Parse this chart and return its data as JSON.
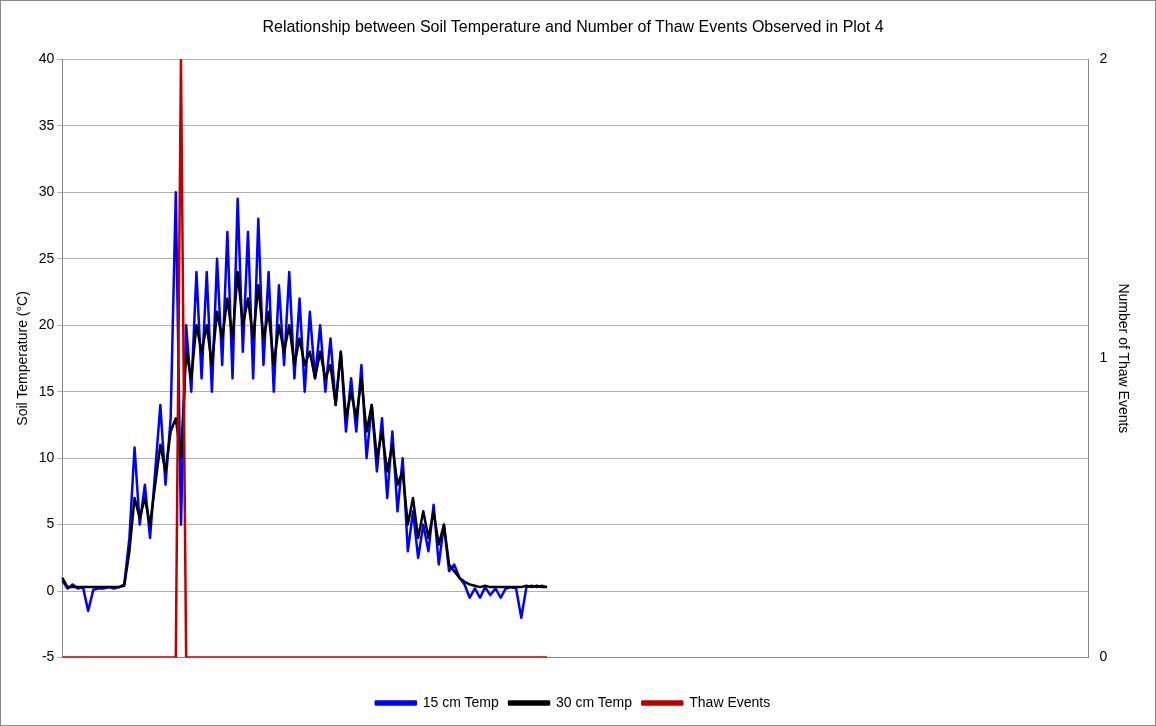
{
  "chart_data": {
    "type": "line",
    "title": "Relationship between Soil Temperature and Number of Thaw Events Observed in Plot 4",
    "ylabel": "Soil Temperature (°C)",
    "y2label": "Number of Thaw Events",
    "categories": [
      null,
      null,
      null,
      null,
      null,
      null,
      null,
      null,
      null,
      null,
      null,
      null,
      null,
      null,
      null,
      null,
      null,
      null,
      null,
      null,
      null,
      null,
      null,
      null,
      null,
      null,
      null,
      null,
      null,
      null,
      null,
      null,
      null,
      null,
      null,
      null,
      null,
      null,
      null,
      null,
      null,
      null,
      null,
      null,
      null,
      null,
      null,
      null,
      null,
      null,
      null,
      null,
      null,
      null,
      null,
      null,
      null,
      null,
      null,
      null,
      null,
      null,
      null,
      null,
      null,
      null,
      null,
      null,
      null,
      null,
      null,
      null,
      null,
      null,
      null,
      null,
      null,
      null,
      null,
      null,
      null,
      null,
      null,
      null,
      null,
      null,
      null,
      null,
      null,
      null,
      null,
      null,
      null,
      null,
      null,
      null,
      null,
      null,
      null,
      null,
      null,
      null,
      null,
      null,
      null,
      null,
      null,
      null,
      null,
      null,
      null,
      null,
      null,
      null,
      null,
      null,
      null,
      null,
      null,
      null,
      null,
      null,
      null,
      null,
      null,
      null,
      null,
      null,
      null,
      null,
      null,
      null,
      null,
      null,
      null,
      null,
      null,
      null,
      null,
      null,
      null,
      null,
      null,
      null,
      null,
      null,
      null,
      null,
      null,
      null,
      null,
      null,
      null,
      null,
      null,
      null,
      null,
      null,
      null,
      null,
      null,
      null,
      null,
      null,
      null,
      null,
      null,
      null,
      null,
      null,
      null,
      null,
      null,
      null,
      null,
      null,
      null,
      null,
      null,
      null,
      null,
      null,
      null,
      null,
      null,
      null,
      null,
      null,
      null,
      null,
      null,
      null,
      null,
      null,
      null,
      null,
      null,
      null,
      null,
      null
    ],
    "series": [
      {
        "name": "15 cm Temp",
        "color": "#0000ff",
        "values": [
          0.8,
          0.2,
          0.5,
          0.2,
          0.3,
          -1.5,
          0.1,
          0.2,
          0.2,
          0.3,
          0.2,
          0.3,
          0.5,
          4,
          10.8,
          5,
          8,
          4,
          9,
          14,
          8,
          13,
          30,
          5,
          20,
          15,
          24,
          16,
          24,
          15,
          25,
          17,
          27,
          16,
          29.5,
          18,
          27,
          16,
          28,
          17,
          24,
          15,
          23,
          17,
          24,
          16,
          22,
          15,
          21,
          16,
          20,
          15,
          19,
          14,
          18,
          12,
          16,
          12,
          17,
          10,
          14,
          9,
          13,
          7,
          12,
          6,
          10,
          3,
          6,
          2.5,
          5,
          3,
          6.5,
          2,
          5,
          1.5,
          2,
          1,
          0.5,
          -0.5,
          0.2,
          -0.5,
          0.3,
          -0.3,
          0.2,
          -0.5,
          0.2,
          0.3,
          0.2,
          -2,
          0.3,
          0.4,
          0.3,
          0.4,
          0.3,
          null,
          null,
          null,
          null,
          null,
          null,
          null,
          null,
          null,
          null,
          null,
          null,
          null,
          null,
          null,
          null,
          null,
          null,
          null,
          null,
          null,
          null,
          null,
          null,
          null,
          null,
          null,
          null,
          null,
          null,
          null,
          null,
          null,
          null,
          null,
          null,
          null,
          null,
          null,
          null,
          null,
          null,
          null,
          null,
          null,
          null,
          null,
          null,
          null,
          null,
          null,
          null,
          null,
          null,
          null,
          null,
          null,
          null,
          null,
          null,
          null,
          null,
          null,
          null,
          null,
          null,
          null,
          null,
          null,
          null,
          null,
          null,
          null,
          null,
          null,
          null,
          null,
          null,
          null,
          null,
          null,
          null,
          null,
          null,
          null,
          null,
          null,
          null,
          null,
          null,
          null,
          null,
          null,
          null,
          null,
          null,
          null,
          null,
          null,
          null,
          null,
          null,
          null,
          null,
          null
        ]
      },
      {
        "name": "30 cm Temp",
        "color": "#000000",
        "values": [
          1,
          0.3,
          0.3,
          0.3,
          0.3,
          0.3,
          0.3,
          0.3,
          0.3,
          0.3,
          0.3,
          0.3,
          0.4,
          3,
          7,
          5.5,
          7,
          5,
          8,
          11,
          9,
          12,
          13,
          10,
          18,
          16,
          20,
          18,
          20,
          17,
          21,
          19,
          22,
          19,
          24,
          20,
          22,
          19,
          23,
          19,
          21,
          17,
          20,
          18,
          20,
          17,
          19,
          17,
          18,
          16,
          18,
          16,
          17,
          14,
          18,
          13,
          15,
          13,
          16,
          12,
          14,
          10,
          12,
          9,
          11,
          8,
          9,
          5,
          7,
          4,
          6,
          4,
          6,
          3.5,
          5,
          2,
          1.5,
          1,
          0.7,
          0.5,
          0.4,
          0.3,
          0.4,
          0.3,
          0.3,
          0.3,
          0.3,
          0.3,
          0.3,
          0.3,
          0.4,
          0.3,
          0.4,
          0.3,
          0.3,
          null,
          null,
          null,
          null,
          null,
          null,
          null,
          null,
          null,
          null,
          null,
          null,
          null,
          null,
          null,
          null,
          null,
          null,
          null,
          null,
          null,
          null,
          null,
          null,
          null,
          null,
          null,
          null,
          null,
          null,
          null,
          null,
          null,
          null,
          null,
          null,
          null,
          null,
          null,
          null,
          null,
          null,
          null,
          null,
          null,
          null,
          null,
          null,
          null,
          null,
          null,
          null,
          null,
          null,
          null,
          null,
          null,
          null,
          null,
          null,
          null,
          null,
          null,
          null,
          null,
          null,
          null,
          null,
          null,
          null,
          null,
          null,
          null,
          null,
          null,
          null,
          null,
          null,
          null,
          null,
          null,
          null,
          null,
          null,
          null,
          null,
          null,
          null,
          null,
          null,
          null,
          null,
          null,
          null,
          null,
          null,
          null,
          null,
          null,
          null,
          null,
          null,
          null,
          null,
          null
        ]
      },
      {
        "name": "Thaw Events",
        "color": "#c00000",
        "axis": "y2",
        "values": [
          0,
          0,
          0,
          0,
          0,
          0,
          0,
          0,
          0,
          0,
          0,
          0,
          0,
          0,
          0,
          0,
          0,
          0,
          0,
          0,
          0,
          0,
          0,
          2,
          0,
          0,
          0,
          0,
          0,
          0,
          0,
          0,
          0,
          0,
          0,
          0,
          0,
          0,
          0,
          0,
          0,
          0,
          0,
          0,
          0,
          0,
          0,
          0,
          0,
          0,
          0,
          0,
          0,
          0,
          0,
          0,
          0,
          0,
          0,
          0,
          0,
          0,
          0,
          0,
          0,
          0,
          0,
          0,
          0,
          0,
          0,
          0,
          0,
          0,
          0,
          0,
          0,
          0,
          0,
          0,
          0,
          0,
          0,
          0,
          0,
          0,
          0,
          0,
          0,
          0,
          0,
          0,
          0,
          0,
          0,
          null,
          null,
          null,
          null,
          null,
          null,
          null,
          null,
          null,
          null,
          null,
          null,
          null,
          null,
          null,
          null,
          null,
          null,
          null,
          null,
          null,
          null,
          null,
          null,
          null,
          null,
          null,
          null,
          null,
          null,
          null,
          null,
          null,
          null,
          null,
          null,
          null,
          null,
          null,
          null,
          null,
          null,
          null,
          null,
          null,
          null,
          null,
          null,
          null,
          null,
          null,
          null,
          null,
          null,
          null,
          null,
          null,
          null,
          null,
          null,
          null,
          null,
          null,
          null,
          null,
          null,
          null,
          null,
          null,
          null,
          null,
          null,
          null,
          null,
          null,
          null,
          null,
          null,
          null,
          null,
          null,
          null,
          null,
          null,
          null,
          null,
          null,
          null,
          null,
          null,
          null,
          null,
          null,
          null,
          null,
          null,
          null,
          null,
          null,
          null,
          null,
          null,
          null,
          null,
          null
        ]
      }
    ],
    "ylim": [
      -5,
      40
    ],
    "yticks": [
      -5,
      0,
      5,
      10,
      15,
      20,
      25,
      30,
      35,
      40
    ],
    "y2lim": [
      0,
      2
    ],
    "y2ticks": [
      0,
      1,
      2
    ],
    "grid": "y",
    "legend": "bottom",
    "marker": "none",
    "line_style": "solid"
  }
}
